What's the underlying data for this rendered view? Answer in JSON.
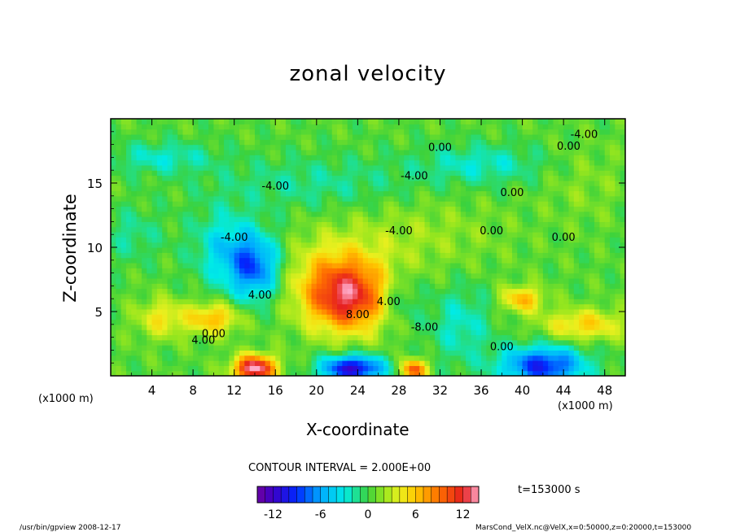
{
  "chart_data": {
    "type": "heatmap",
    "title": "zonal velocity",
    "xlabel": "X-coordinate",
    "ylabel": "Z-coordinate",
    "x_unit": "(x1000 m)",
    "x_unit_right": "(x1000 m)",
    "xlim": [
      0,
      50
    ],
    "ylim": [
      0,
      20
    ],
    "x_ticks": [
      "4",
      "8",
      "12",
      "16",
      "20",
      "24",
      "28",
      "32",
      "36",
      "40",
      "44",
      "48"
    ],
    "y_ticks": [
      "5",
      "10",
      "15"
    ],
    "contour_labels": [
      "0.00",
      "0.00",
      "-4.00",
      "-4.00",
      "-4.00",
      "-4.00",
      "0.00",
      "0.00",
      "0.00",
      "0.00",
      "-8.00",
      "8.00",
      "4.00",
      "4.00",
      "0.00",
      "-4.00",
      "4.00"
    ],
    "contour_interval": "CONTOUR INTERVAL = 2.000E+00",
    "colorbar": {
      "ticks": [
        "-12",
        "-6",
        "0",
        "6",
        "12"
      ],
      "range": [
        -14,
        14
      ]
    },
    "time": "t=153000 s"
  },
  "footer": {
    "left": "/usr/bin/gpview  2008-12-17",
    "right": "MarsCond_VelX.nc@VelX,x=0:50000,z=0:20000,t=153000"
  },
  "colors": {
    "strong_negative": "#7b00a8",
    "negative": "#1a4cff",
    "weak_negative": "#00d9e6",
    "zero": "#33cc33",
    "weak_positive": "#e6f01a",
    "positive": "#ff6a00",
    "strong_positive": "#ffb3c6"
  }
}
